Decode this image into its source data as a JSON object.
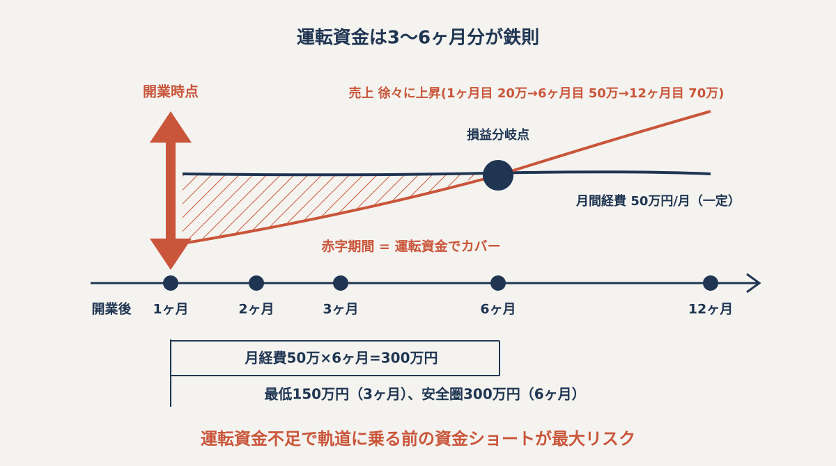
{
  "title": "運転資金は3〜6ヶ月分が鉄則",
  "opening_label": "開業時点",
  "sales_label": "売上 徐々に上昇(1ヶ月目 20万→6ヶ月目 50万→12ヶ月目 70万)",
  "breakeven_label": "損益分岐点",
  "expense_label": "月間経費 50万円/月（一定）",
  "deficit_label": "赤字期間 = 運転資金でカバー",
  "timeline": {
    "start": "開業後",
    "points": [
      "1ヶ月",
      "2ヶ月",
      "3ヶ月",
      "6ヶ月",
      "12ヶ月"
    ]
  },
  "calc": "月経費50万×6ヶ月=300万円",
  "range": "最低150万円（3ヶ月）、安全圏300万円（6ヶ月）",
  "footer": "運転資金不足で軌道に乗る前の資金ショートが最大リスク"
}
